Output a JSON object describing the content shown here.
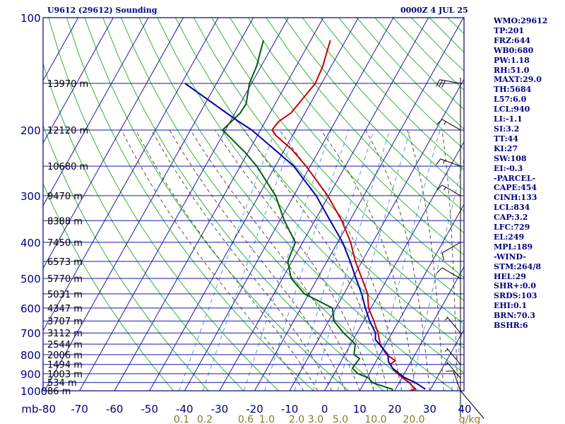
{
  "header": {
    "station": "U9612 (29612) Sounding",
    "time": "0000Z  4 JUL 25"
  },
  "indices": [
    "WMO:29612",
    "TP:201",
    "FRZ:644",
    "WB0:680",
    "PW:1.18",
    "RH:51.0",
    "MAXT:29.0",
    "TH:5684",
    "L57:6.0",
    "LCL:940",
    "LI:-1.1",
    "SI:3.2",
    "TT:44",
    "KI:27",
    "SW:108",
    "EI:-0.3",
    "-PARCEL-",
    "CAPE:454",
    "CINH:133",
    "LCL:834",
    "CAP:3.2",
    "LFC:729",
    "EL:249",
    "MPL:189",
    "-WIND-",
    "STM:264/8",
    "HEL:29",
    "SHR+:0.0",
    "SRDS:103",
    "EHI:0.1",
    "BRN:70.3",
    "BSHR:6"
  ],
  "colors": {
    "frame": "#000080",
    "pressure_lines": "#1a1aa6",
    "isotherms": "#1a1aa6",
    "dry_adiabats": "#33b533",
    "moist_adiabats": "#555533",
    "mixing_ratio": "#5599dd",
    "temperature": "#c80000",
    "dewpoint": "#0a5a0a",
    "parcel": "#0000aa",
    "mixing_label": "#8a7a20",
    "wind_barbs": "#000000"
  },
  "chart_data": {
    "type": "skew-t",
    "pressure_axis": {
      "log_scale": true,
      "range_hpa": [
        1000,
        100
      ],
      "ticks": [
        100,
        200,
        300,
        400,
        500,
        600,
        700,
        800,
        900,
        1000
      ]
    },
    "temperature_axis": {
      "range_c": [
        -80,
        40
      ],
      "tick_values": [
        -80,
        -70,
        -60,
        -50,
        -40,
        -30,
        -20,
        -10,
        0,
        10,
        20,
        30,
        40
      ],
      "tick_labels": [
        "mb-80",
        "-70",
        "-60",
        "-50",
        "-40",
        "-30",
        "-20",
        "-10",
        "0",
        "10",
        "20",
        "30",
        "40"
      ]
    },
    "mixing_ratio_labels": [
      "0.1",
      "0.2",
      "0.6",
      "1.0",
      "2.0",
      "3.0",
      "5.0",
      "10.0",
      "20.0",
      "g/kg"
    ],
    "heights": [
      {
        "p": 150,
        "label": "13970 m"
      },
      {
        "p": 200,
        "label": "12120 m"
      },
      {
        "p": 250,
        "label": "10680 m"
      },
      {
        "p": 300,
        "label": "9470 m"
      },
      {
        "p": 350,
        "label": "8388 m"
      },
      {
        "p": 400,
        "label": "7450 m"
      },
      {
        "p": 450,
        "label": "6573 m"
      },
      {
        "p": 500,
        "label": "5770 m"
      },
      {
        "p": 550,
        "label": "5031 m"
      },
      {
        "p": 600,
        "label": "4347 m"
      },
      {
        "p": 650,
        "label": "3707 m"
      },
      {
        "p": 700,
        "label": "3112 m"
      },
      {
        "p": 750,
        "label": "2544 m"
      },
      {
        "p": 800,
        "label": "2006 m"
      },
      {
        "p": 850,
        "label": "1494 m"
      },
      {
        "p": 900,
        "label": "1003 m"
      },
      {
        "p": 950,
        "label": "534 m"
      },
      {
        "p": 1000,
        "label": "86 m"
      }
    ],
    "temperature": [
      {
        "p": 1000,
        "t": 24.3
      },
      {
        "p": 990,
        "t": 25.5
      },
      {
        "p": 950,
        "t": 22.9
      },
      {
        "p": 925,
        "t": 20.4
      },
      {
        "p": 880,
        "t": 16.5
      },
      {
        "p": 850,
        "t": 14.5
      },
      {
        "p": 830,
        "t": 15.3
      },
      {
        "p": 800,
        "t": 11.9
      },
      {
        "p": 750,
        "t": 8.4
      },
      {
        "p": 700,
        "t": 6.0
      },
      {
        "p": 650,
        "t": 2.9
      },
      {
        "p": 600,
        "t": -0.7
      },
      {
        "p": 550,
        "t": -3.2
      },
      {
        "p": 500,
        "t": -7.3
      },
      {
        "p": 450,
        "t": -11.9
      },
      {
        "p": 400,
        "t": -16.3
      },
      {
        "p": 350,
        "t": -22.3
      },
      {
        "p": 300,
        "t": -30.3
      },
      {
        "p": 250,
        "t": -41.2
      },
      {
        "p": 225,
        "t": -48.1
      },
      {
        "p": 207,
        "t": -54.7
      },
      {
        "p": 200,
        "t": -56.7
      },
      {
        "p": 190,
        "t": -56.2
      },
      {
        "p": 180,
        "t": -54.0
      },
      {
        "p": 150,
        "t": -51.8
      },
      {
        "p": 135,
        "t": -52.4
      },
      {
        "p": 115,
        "t": -54.4
      }
    ],
    "dewpoint": [
      {
        "p": 1000,
        "t": 19.5
      },
      {
        "p": 990,
        "t": 19.0
      },
      {
        "p": 960,
        "t": 13.8
      },
      {
        "p": 950,
        "t": 12.2
      },
      {
        "p": 925,
        "t": 10.6
      },
      {
        "p": 900,
        "t": 6.8
      },
      {
        "p": 870,
        "t": 4.3
      },
      {
        "p": 850,
        "t": 4.5
      },
      {
        "p": 820,
        "t": 4.8
      },
      {
        "p": 800,
        "t": 2.6
      },
      {
        "p": 750,
        "t": 1.3
      },
      {
        "p": 700,
        "t": -3.8
      },
      {
        "p": 650,
        "t": -8.5
      },
      {
        "p": 600,
        "t": -11.0
      },
      {
        "p": 550,
        "t": -21.2
      },
      {
        "p": 500,
        "t": -27.5
      },
      {
        "p": 450,
        "t": -31.2
      },
      {
        "p": 400,
        "t": -32.1
      },
      {
        "p": 350,
        "t": -38.7
      },
      {
        "p": 300,
        "t": -45.2
      },
      {
        "p": 250,
        "t": -55.3
      },
      {
        "p": 230,
        "t": -60.7
      },
      {
        "p": 200,
        "t": -70.8
      },
      {
        "p": 180,
        "t": -68.5
      },
      {
        "p": 170,
        "t": -68.3
      },
      {
        "p": 150,
        "t": -70.6
      },
      {
        "p": 135,
        "t": -71.3
      },
      {
        "p": 115,
        "t": -73.5
      }
    ],
    "parcel": [
      {
        "p": 990,
        "t": 28.5
      },
      {
        "p": 950,
        "t": 24.5
      },
      {
        "p": 920,
        "t": 20.5
      },
      {
        "p": 870,
        "t": 15.8
      },
      {
        "p": 834,
        "t": 13.5
      },
      {
        "p": 800,
        "t": 12.3
      },
      {
        "p": 729,
        "t": 6.3
      },
      {
        "p": 700,
        "t": 5.3
      },
      {
        "p": 650,
        "t": 1.7
      },
      {
        "p": 600,
        "t": -1.6
      },
      {
        "p": 550,
        "t": -4.9
      },
      {
        "p": 500,
        "t": -9.0
      },
      {
        "p": 450,
        "t": -13.4
      },
      {
        "p": 400,
        "t": -18.6
      },
      {
        "p": 350,
        "t": -25.6
      },
      {
        "p": 300,
        "t": -33.6
      },
      {
        "p": 249,
        "t": -45.0
      },
      {
        "p": 200,
        "t": -62.5
      },
      {
        "p": 189,
        "t": -68.0
      },
      {
        "p": 150,
        "t": -89.0
      }
    ],
    "wind_barbs": [
      {
        "p": 150,
        "dir": 280,
        "speed": 30
      },
      {
        "p": 200,
        "dir": 300,
        "speed": 15
      },
      {
        "p": 250,
        "dir": 290,
        "speed": 15
      },
      {
        "p": 300,
        "dir": 300,
        "speed": 15
      },
      {
        "p": 400,
        "dir": 240,
        "speed": 10
      },
      {
        "p": 500,
        "dir": 300,
        "speed": 10
      },
      {
        "p": 700,
        "dir": 320,
        "speed": 5
      },
      {
        "p": 850,
        "dir": 320,
        "speed": 5
      },
      {
        "p": 925,
        "dir": 320,
        "speed": 5
      },
      {
        "p": 1000,
        "dir": 340,
        "speed": 10
      }
    ],
    "grid": true
  }
}
